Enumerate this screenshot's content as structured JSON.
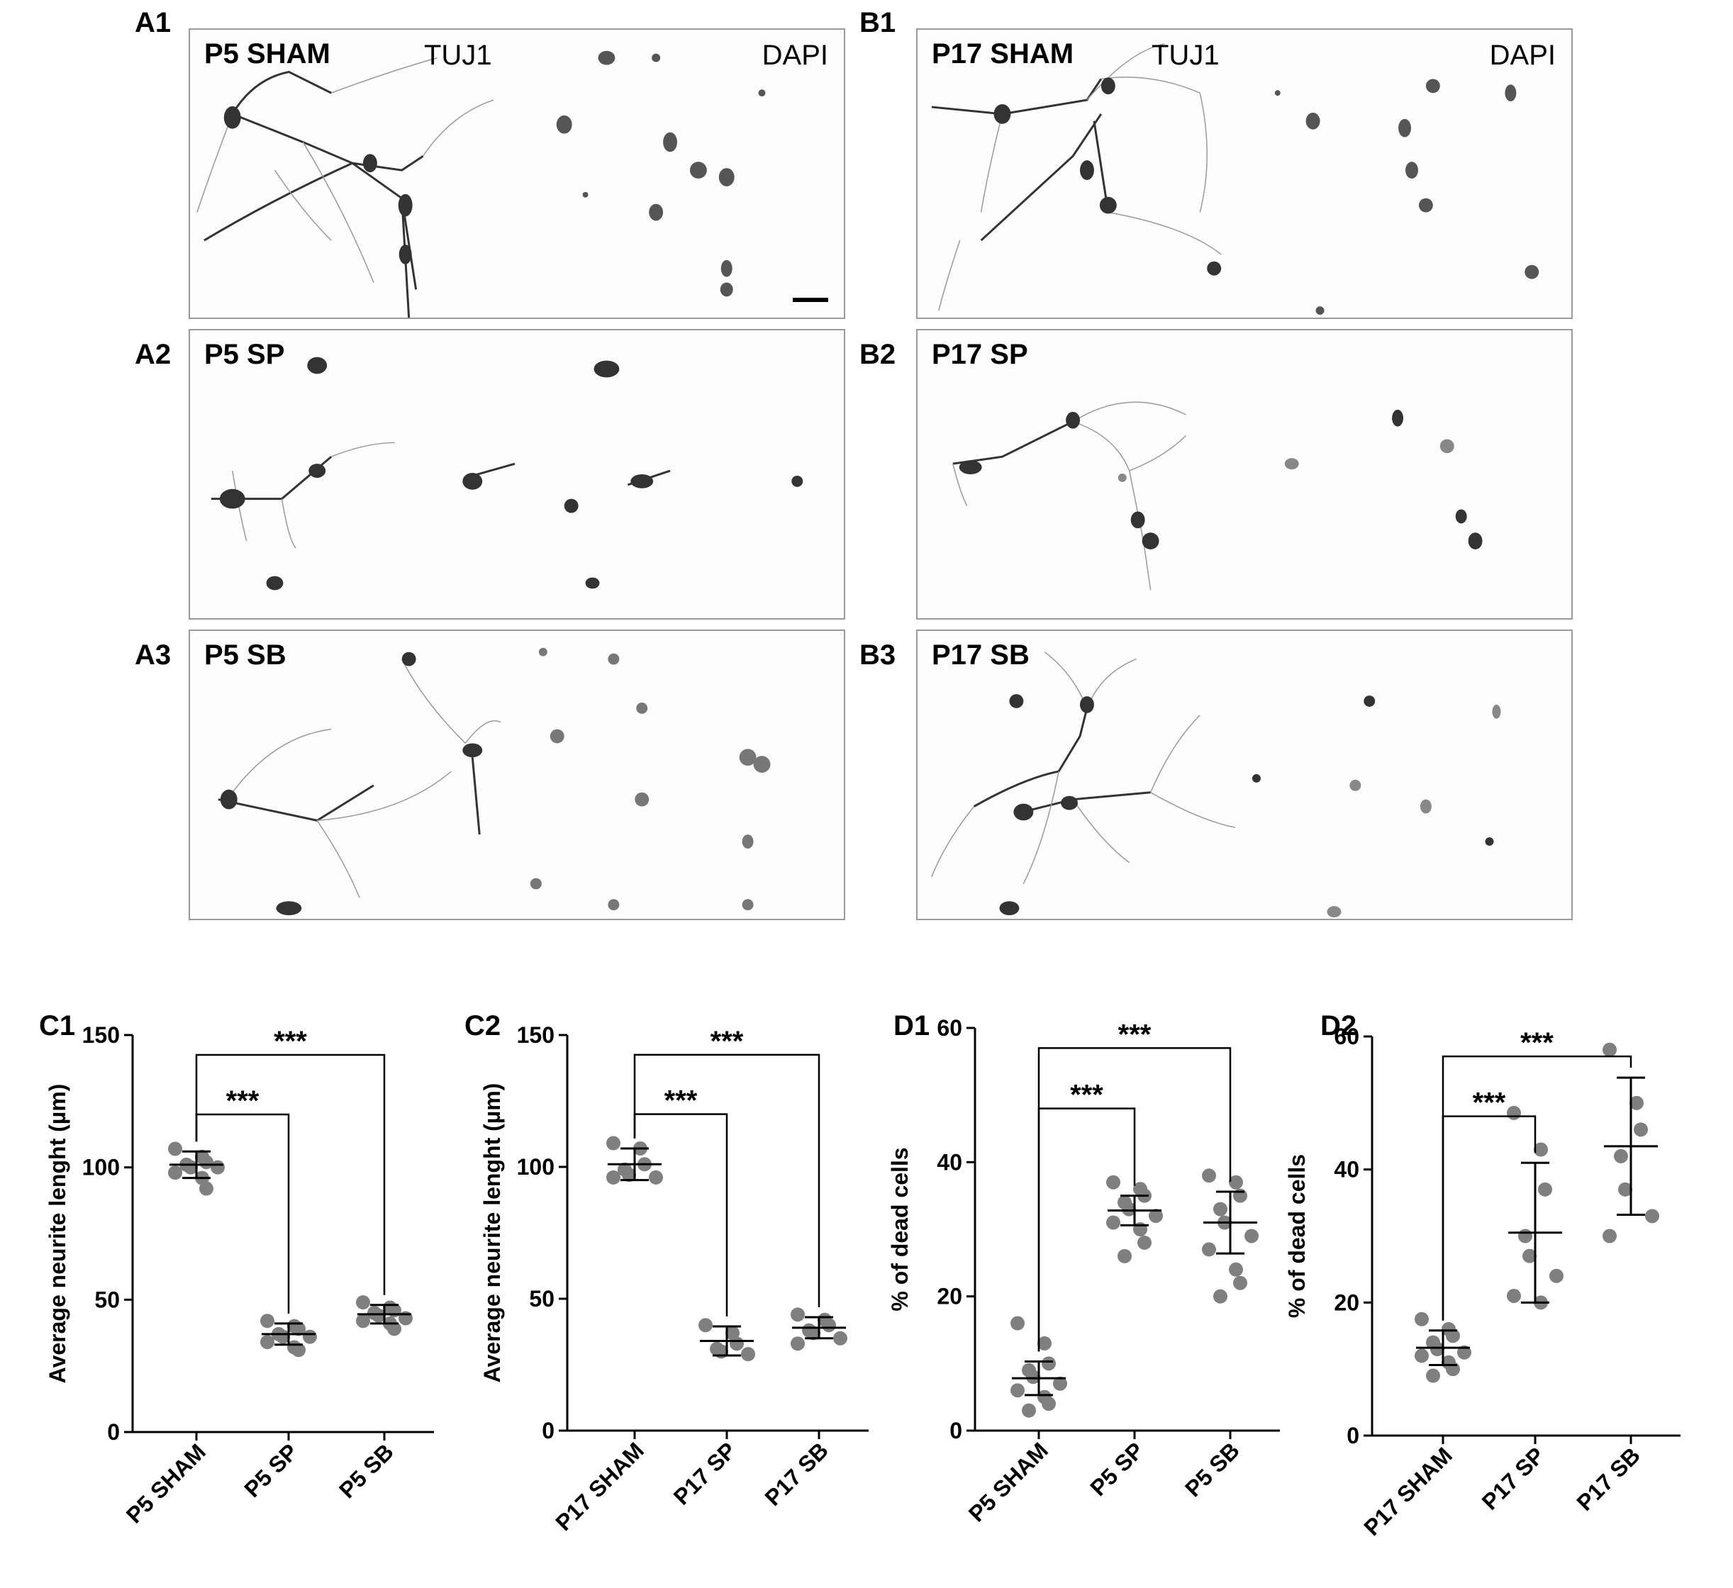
{
  "micrographs": [
    {
      "id": "A1",
      "condition": "P5 SHAM",
      "stain_left": "TUJ1",
      "stain_right": "DAPI"
    },
    {
      "id": "A2",
      "condition": "P5 SP"
    },
    {
      "id": "A3",
      "condition": "P5 SB"
    },
    {
      "id": "B1",
      "condition": "P17 SHAM",
      "stain_left": "TUJ1",
      "stain_right": "DAPI"
    },
    {
      "id": "B2",
      "condition": "P17 SP"
    },
    {
      "id": "B3",
      "condition": "P17 SB"
    }
  ],
  "chart_data": [
    {
      "panel": "C1",
      "type": "scatter",
      "ylabel": "Average neurite lenght (µm)",
      "ylim": [
        0,
        150
      ],
      "yticks": [
        0,
        50,
        100,
        150
      ],
      "categories": [
        "P5 SHAM",
        "P5 SP",
        "P5 SB"
      ],
      "points": [
        [
          107,
          104,
          102,
          101,
          100,
          100,
          98,
          96,
          92
        ],
        [
          42,
          40,
          39,
          37,
          36,
          36,
          34,
          32,
          31
        ],
        [
          49,
          47,
          46,
          45,
          44,
          43,
          42,
          41,
          39
        ]
      ],
      "mean": [
        101,
        37,
        44.5
      ],
      "sd": [
        5,
        4,
        3.5
      ],
      "significance": [
        {
          "from": "P5 SHAM",
          "to": "P5 SP",
          "label": "***"
        },
        {
          "from": "P5 SHAM",
          "to": "P5 SB",
          "label": "***"
        }
      ]
    },
    {
      "panel": "C2",
      "type": "scatter",
      "ylabel": "Average neurite lenght (µm)",
      "ylim": [
        0,
        150
      ],
      "yticks": [
        0,
        50,
        100,
        150
      ],
      "categories": [
        "P17 SHAM",
        "P17 SP",
        "P17 SB"
      ],
      "points": [
        [
          109,
          107,
          101,
          99,
          97,
          96,
          96
        ],
        [
          40,
          37,
          33,
          31,
          30,
          29
        ],
        [
          44,
          42,
          40,
          38,
          37,
          35,
          33
        ]
      ],
      "mean": [
        101,
        34,
        39
      ],
      "sd": [
        6,
        5.5,
        4
      ],
      "significance": [
        {
          "from": "P17 SHAM",
          "to": "P17 SP",
          "label": "***"
        },
        {
          "from": "P17 SHAM",
          "to": "P17 SB",
          "label": "***"
        }
      ]
    },
    {
      "panel": "D1",
      "type": "scatter",
      "ylabel": "% of dead cells",
      "ylim": [
        0,
        60
      ],
      "yticks": [
        0,
        20,
        40,
        60
      ],
      "categories": [
        "P5 SHAM",
        "P5 SP",
        "P5 SB"
      ],
      "points": [
        [
          16,
          13,
          10,
          9,
          8,
          7,
          6,
          5,
          4,
          3
        ],
        [
          37,
          36,
          35,
          34,
          33,
          32,
          31,
          30,
          28,
          26
        ],
        [
          38,
          37,
          35,
          33,
          31,
          29,
          27,
          24,
          22,
          20
        ]
      ],
      "mean": [
        7.8,
        32.8,
        31
      ],
      "sd": [
        2.5,
        2.2,
        4.6
      ],
      "significance": [
        {
          "from": "P5 SHAM",
          "to": "P5 SP",
          "label": "***"
        },
        {
          "from": "P5 SHAM",
          "to": "P5 SB",
          "label": "***"
        }
      ]
    },
    {
      "panel": "D2",
      "type": "scatter",
      "ylabel": "% of dead cells",
      "ylim": [
        0,
        60
      ],
      "yticks": [
        0,
        20,
        40,
        60
      ],
      "categories": [
        "P17 SHAM",
        "P17 SP",
        "P17 SB"
      ],
      "points": [
        [
          17.5,
          16,
          15,
          14,
          13,
          12.5,
          12,
          11,
          10,
          9
        ],
        [
          48.5,
          43,
          37,
          30,
          27,
          24,
          21,
          20
        ],
        [
          58,
          50,
          46,
          42,
          37,
          33,
          30
        ]
      ],
      "mean": [
        13.2,
        30.5,
        43.5
      ],
      "sd": [
        2.6,
        10.5,
        10.3
      ],
      "significance": [
        {
          "from": "P17 SHAM",
          "to": "P17 SP",
          "label": "***"
        },
        {
          "from": "P17 SHAM",
          "to": "P17 SB",
          "label": "***"
        }
      ]
    }
  ]
}
